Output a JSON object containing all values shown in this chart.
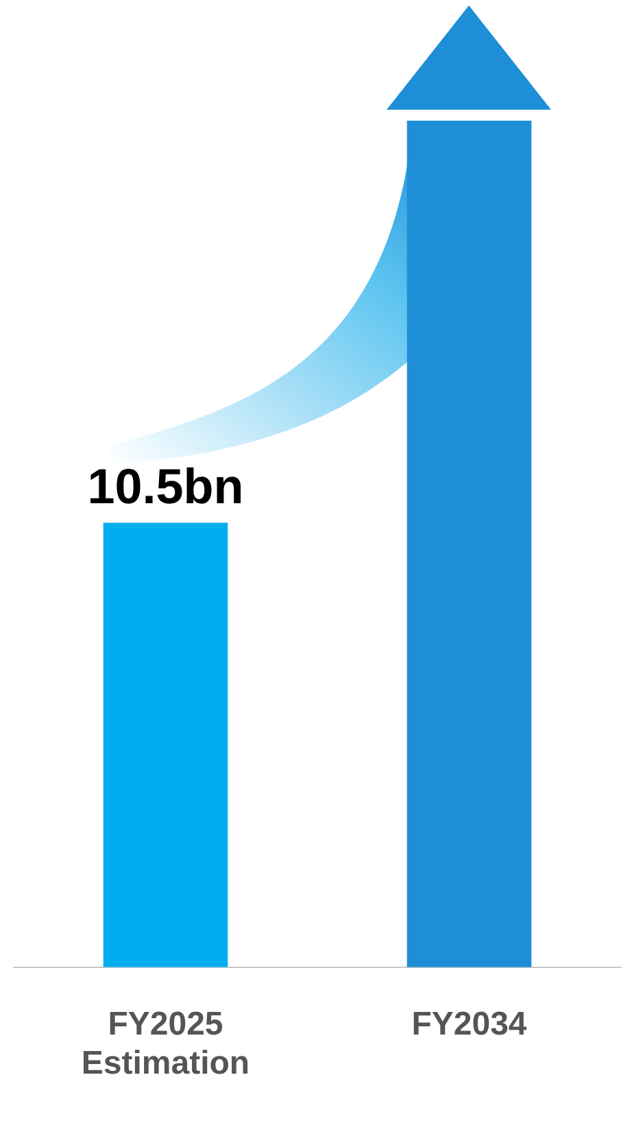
{
  "chart_data": {
    "type": "bar",
    "categories": [
      "FY2025\nEstimation",
      "FY2034"
    ],
    "values": [
      10.5,
      20
    ],
    "colors": [
      "#00aeef",
      "#1e8fd6"
    ],
    "value_labels": [
      "10.5bn",
      null
    ],
    "grid": false,
    "legend": false,
    "tick_labels": "x"
  }
}
